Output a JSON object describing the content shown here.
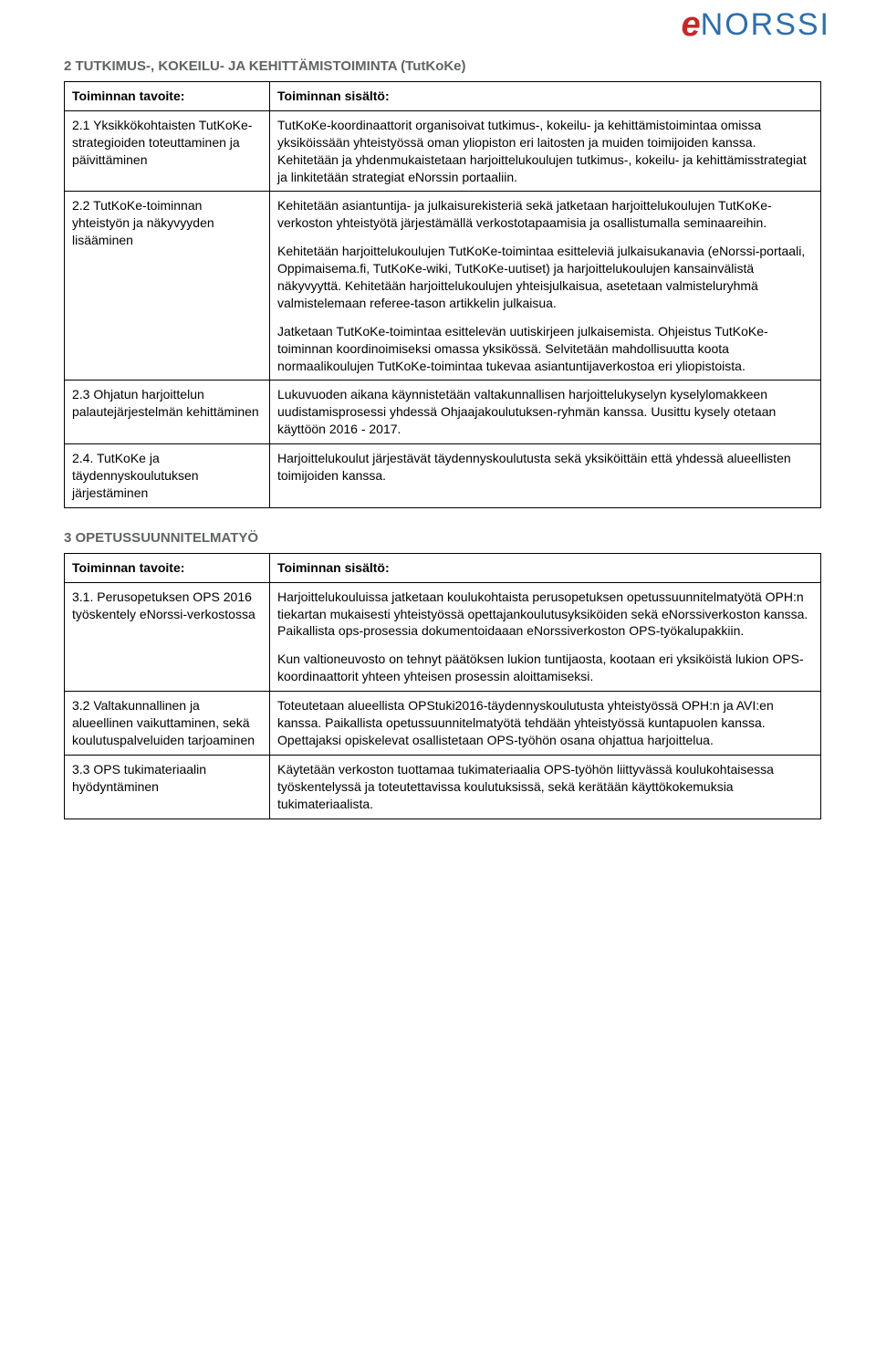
{
  "logo": {
    "e": "e",
    "rest": "NORSSI"
  },
  "section2": {
    "heading": "2 TUTKIMUS-, KOKEILU- JA KEHITTÄMISTOIMINTA (TutKoKe)",
    "col_left": "Toiminnan tavoite:",
    "col_right": "Toiminnan sisältö:",
    "rows": [
      {
        "left": "2.1 Yksikkökohtaisten TutKoKe- strategioiden toteuttaminen ja päivittäminen",
        "right": [
          "TutKoKe-koordinaattorit organisoivat tutkimus-, kokeilu- ja kehittämistoimintaa omissa yksiköissään yhteistyössä oman yliopiston eri laitosten ja muiden toimijoiden kanssa. Kehitetään ja yhdenmukaistetaan harjoittelukoulujen tutkimus-, kokeilu- ja kehittämisstrategiat ja linkitetään strategiat eNorssin portaaliin."
        ]
      },
      {
        "left": "2.2 TutKoKe-toiminnan yhteistyön ja näkyvyyden lisääminen",
        "right": [
          "Kehitetään asiantuntija- ja julkaisurekisteriä sekä jatketaan harjoittelukoulujen TutKoKe-verkoston yhteistyötä järjestämällä verkostotapaamisia ja osallistumalla seminaareihin.",
          "Kehitetään harjoittelukoulujen TutKoKe-toimintaa esitteleviä julkaisukanavia (eNorssi-portaali, Oppimaisema.fi, TutKoKe-wiki, TutKoKe-uutiset) ja harjoittelukoulujen kansainvälistä näkyvyyttä. Kehitetään harjoittelukoulujen yhteisjulkaisua, asetetaan valmisteluryhmä valmistelemaan referee-tason artikkelin julkaisua.",
          "Jatketaan TutKoKe-toimintaa esittelevän uutiskirjeen julkaisemista. Ohjeistus TutKoKe-toiminnan koordinoimiseksi omassa yksikössä.  Selvitetään mahdollisuutta koota normaalikoulujen TutKoKe-toimintaa tukevaa asiantuntijaverkostoa eri yliopistoista."
        ]
      },
      {
        "left": "2.3 Ohjatun harjoittelun palautejärjestelmän kehittäminen",
        "right": [
          "Lukuvuoden aikana käynnistetään valtakunnallisen harjoittelukyselyn kyselylomakkeen uudistamisprosessi yhdessä Ohjaajakoulutuksen-ryhmän kanssa. Uusittu kysely otetaan käyttöön 2016 - 2017."
        ]
      },
      {
        "left": "2.4. TutKoKe ja täydennyskoulutuksen järjestäminen",
        "right": [
          "Harjoittelukoulut järjestävät täydennyskoulutusta sekä yksiköittäin että yhdessä alueellisten toimijoiden kanssa."
        ]
      }
    ]
  },
  "section3": {
    "heading": "3 OPETUSSUUNNITELMATYÖ",
    "col_left": "Toiminnan tavoite:",
    "col_right": "Toiminnan sisältö:",
    "rows": [
      {
        "left": "3.1. Perusopetuksen OPS 2016 työskentely eNorssi-verkostossa",
        "right": [
          "Harjoittelukouluissa jatketaan koulukohtaista perusopetuksen opetussuunnitelmatyötä OPH:n tiekartan mukaisesti yhteistyössä opettajankoulutusyksiköiden sekä eNorssiverkoston kanssa. Paikallista ops-prosessia dokumentoidaaan eNorssiverkoston OPS-työkalupakkiin.",
          "Kun valtioneuvosto on tehnyt päätöksen lukion tuntijaosta, kootaan eri yksiköistä lukion OPS-koordinaattorit yhteen yhteisen prosessin aloittamiseksi."
        ]
      },
      {
        "left": "3.2 Valtakunnallinen ja alueellinen vaikuttaminen, sekä koulutuspalveluiden tarjoaminen",
        "right": [
          "Toteutetaan alueellista OPStuki2016-täydennyskoulutusta yhteistyössä OPH:n ja AVI:en kanssa. Paikallista opetussuunnitelmatyötä tehdään yhteistyössä kuntapuolen kanssa. Opettajaksi opiskelevat osallistetaan OPS-työhön osana ohjattua harjoittelua."
        ]
      },
      {
        "left": "3.3 OPS tukimateriaalin hyödyntäminen",
        "right": [
          "Käytetään verkoston tuottamaa tukimateriaalia OPS-työhön liittyvässä koulukohtaisessa työskentelyssä ja toteutettavissa koulutuksissä, sekä kerätään käyttökokemuksia tukimateriaalista."
        ]
      }
    ]
  }
}
